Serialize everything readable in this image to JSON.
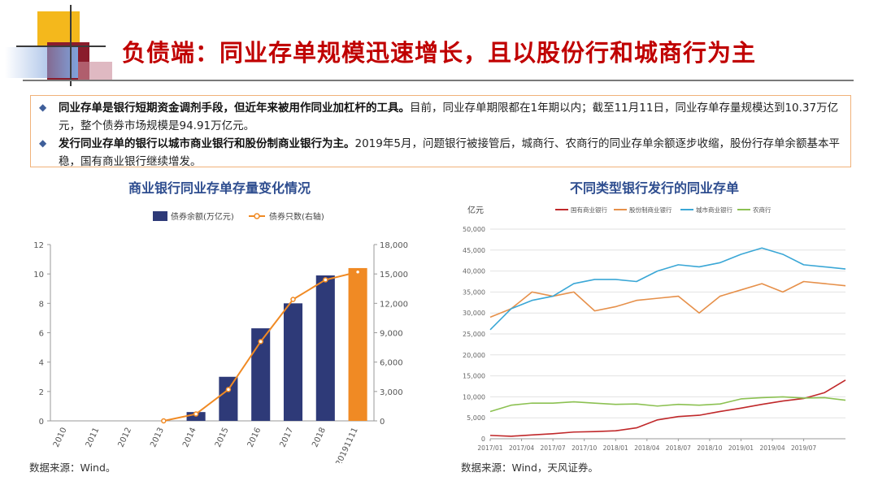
{
  "title": "负债端：同业存单规模迅速增长，且以股份行和城商行为主",
  "summary": {
    "bullet1_bold": "同业存单是银行短期资金调剂手段，但近年来被用作同业加杠杆的工具。",
    "bullet1_text": "目前，同业存单期限都在1年期以内；截至11月11日，同业存单存量规模达到10.37万亿元，整个债券市场规模是94.91万亿元。",
    "bullet2_bold": "发行同业存单的银行以城市商业银行和股份制商业银行为主。",
    "bullet2_text": "2019年5月，问题银行被接管后，城商行、农商行的同业存单余额逐步收缩，股份行存单余额基本平稳，国有商业银行继续增发。"
  },
  "left_chart_title": "商业银行同业存单存量变化情况",
  "right_chart_title": "不同类型银行发行的同业存单",
  "left_source": "数据来源：Wind。",
  "right_source": "数据来源：Wind，天风证券。",
  "colors": {
    "bar": "#2e3a78",
    "bar_highlight": "#f08a24",
    "count_line": "#f08a24",
    "state_owned": "#c0282a",
    "joint_stock": "#e6904a",
    "city": "#3aa7d6",
    "rural": "#8cc152"
  },
  "chart_data": [
    {
      "type": "bar",
      "categories": [
        "2010",
        "2011",
        "2012",
        "2013",
        "2014",
        "2015",
        "2016",
        "2017",
        "2018",
        "20191111"
      ],
      "series": [
        {
          "name": "债券余额(万亿元)",
          "type": "bar",
          "axis": "left",
          "values": [
            0,
            0,
            0,
            0.0,
            0.6,
            3.0,
            6.3,
            8.0,
            9.9,
            10.4
          ]
        },
        {
          "name": "债券只数(右轴)",
          "type": "line",
          "axis": "right",
          "values": [
            null,
            null,
            null,
            0,
            700,
            3200,
            8100,
            12400,
            14400,
            15200
          ]
        }
      ],
      "left_yticks": [
        "0",
        "2",
        "4",
        "6",
        "8",
        "10",
        "12"
      ],
      "right_yticks": [
        "0",
        "3,000",
        "6,000",
        "9,000",
        "12,000",
        "15,000",
        "18,000"
      ],
      "ylim": [
        0,
        12
      ],
      "ylim_right": [
        0,
        18000
      ],
      "legend": "top-center",
      "grid": false
    },
    {
      "type": "line",
      "ylabel": "亿元",
      "ylim": [
        0,
        50000
      ],
      "yticks": [
        "0",
        "5,000",
        "10,000",
        "15,000",
        "20,000",
        "25,000",
        "30,000",
        "35,000",
        "40,000",
        "45,000",
        "50,000"
      ],
      "xticks": [
        "2017/01",
        "2017/04",
        "2017/07",
        "2017/10",
        "2018/01",
        "2018/04",
        "2018/07",
        "2018/10",
        "2019/01",
        "2019/04",
        "2019/07"
      ],
      "x": [
        "2017/01",
        "2017/03",
        "2017/05",
        "2017/07",
        "2017/09",
        "2017/11",
        "2018/01",
        "2018/03",
        "2018/05",
        "2018/07",
        "2018/09",
        "2018/11",
        "2019/01",
        "2019/03",
        "2019/05",
        "2019/07",
        "2019/09",
        "2019/11"
      ],
      "legend": "top",
      "grid": true,
      "series": [
        {
          "name": "国有商业银行",
          "values": [
            800,
            600,
            900,
            1200,
            1600,
            1700,
            1900,
            2600,
            4500,
            5300,
            5600,
            6500,
            7300,
            8200,
            9000,
            9600,
            11000,
            14000
          ]
        },
        {
          "name": "股份制商业银行",
          "values": [
            29000,
            31000,
            35000,
            34000,
            35000,
            30500,
            31500,
            33000,
            33500,
            34000,
            30000,
            34000,
            35500,
            37000,
            35000,
            37500,
            37000,
            36500
          ]
        },
        {
          "name": "城市商业银行",
          "values": [
            26000,
            31000,
            33000,
            34000,
            37000,
            38000,
            38000,
            37500,
            40000,
            41500,
            41000,
            42000,
            44000,
            45500,
            44000,
            41500,
            41000,
            40500
          ]
        },
        {
          "name": "农商行",
          "values": [
            6500,
            8000,
            8500,
            8500,
            8800,
            8500,
            8200,
            8300,
            7800,
            8200,
            8000,
            8300,
            9500,
            9800,
            10000,
            9700,
            9800,
            9200
          ]
        }
      ]
    }
  ]
}
